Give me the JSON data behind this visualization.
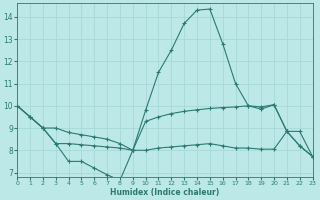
{
  "xlabel": "Humidex (Indice chaleur)",
  "xlim": [
    0,
    23
  ],
  "ylim": [
    6.8,
    14.6
  ],
  "yticks": [
    7,
    8,
    9,
    10,
    11,
    12,
    13,
    14
  ],
  "xticks": [
    0,
    1,
    2,
    3,
    4,
    5,
    6,
    7,
    8,
    9,
    10,
    11,
    12,
    13,
    14,
    15,
    16,
    17,
    18,
    19,
    20,
    21,
    22,
    23
  ],
  "bg_color": "#bde8e8",
  "grid_color": "#a8d8d8",
  "line_color": "#2a7a72",
  "lines": [
    {
      "x": [
        0,
        1,
        2,
        3,
        4,
        5,
        6,
        7,
        8,
        9,
        10,
        11,
        12,
        13,
        14,
        15,
        16,
        17,
        18,
        19,
        20,
        21,
        22,
        23
      ],
      "y": [
        10.0,
        9.5,
        9.0,
        8.3,
        7.5,
        7.5,
        7.2,
        6.9,
        6.65,
        8.0,
        9.8,
        11.5,
        12.5,
        13.7,
        14.3,
        14.35,
        12.8,
        11.0,
        10.0,
        9.85,
        10.05,
        8.85,
        8.2,
        7.72
      ]
    },
    {
      "x": [
        0,
        1,
        2,
        3,
        4,
        5,
        6,
        7,
        8,
        9,
        10,
        11,
        12,
        13,
        14,
        15,
        16,
        17,
        18,
        19,
        20,
        21,
        22,
        23
      ],
      "y": [
        10.0,
        9.5,
        9.0,
        9.0,
        8.8,
        8.7,
        8.6,
        8.5,
        8.3,
        8.0,
        9.3,
        9.5,
        9.65,
        9.75,
        9.82,
        9.88,
        9.92,
        9.95,
        10.0,
        9.95,
        10.05,
        8.85,
        8.85,
        7.72
      ]
    },
    {
      "x": [
        0,
        1,
        2,
        3,
        4,
        5,
        6,
        7,
        8,
        9,
        10,
        11,
        12,
        13,
        14,
        15,
        16,
        17,
        18,
        19,
        20,
        21,
        22,
        23
      ],
      "y": [
        10.0,
        9.5,
        9.0,
        8.3,
        8.3,
        8.25,
        8.2,
        8.15,
        8.1,
        8.0,
        8.0,
        8.1,
        8.15,
        8.2,
        8.25,
        8.3,
        8.2,
        8.1,
        8.1,
        8.05,
        8.05,
        8.85,
        8.2,
        7.72
      ]
    }
  ]
}
